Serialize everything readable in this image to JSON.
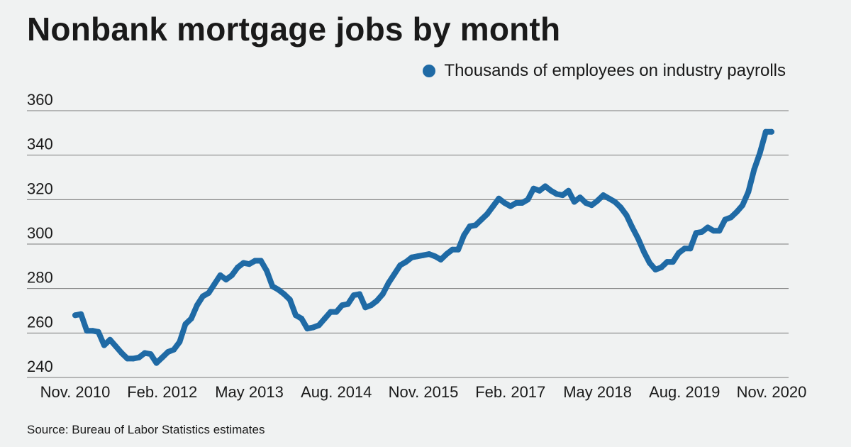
{
  "title": "Nonbank mortgage jobs by month",
  "source": "Source: Bureau of Labor Statistics estimates",
  "colors": {
    "series": "#1f6aa5",
    "grid": "#7a7a7a",
    "background": "#f0f2f2"
  },
  "chart_data": {
    "type": "line",
    "title": "Nonbank mortgage jobs by month",
    "xlabel": "",
    "ylabel": "",
    "ylim": [
      240,
      360
    ],
    "yticks": [
      240,
      260,
      280,
      300,
      320,
      340,
      360
    ],
    "xtick_labels": [
      "Nov. 2010",
      "Feb. 2012",
      "May 2013",
      "Aug. 2014",
      "Nov. 2015",
      "Feb. 2017",
      "May 2018",
      "Aug. 2019",
      "Nov. 2020"
    ],
    "grid": true,
    "legend_position": "top-right",
    "series": [
      {
        "name": "Thousands of employees on industry payrolls",
        "start": "Nov. 2010",
        "frequency": "monthly",
        "values": [
          268,
          268.5,
          261,
          261,
          260.5,
          254.5,
          257,
          254,
          251,
          248.5,
          248.5,
          249,
          251,
          250.5,
          246.5,
          249,
          251.5,
          252.5,
          256,
          264,
          266.5,
          272.5,
          276.5,
          278,
          282,
          286,
          284,
          286,
          289.5,
          291.5,
          291,
          292.5,
          292.5,
          288,
          281,
          279.5,
          277.5,
          275,
          268,
          266.5,
          262,
          262.5,
          263.5,
          266.5,
          269.5,
          269.5,
          272.5,
          273,
          277,
          277.5,
          271.5,
          272.5,
          274.5,
          277.5,
          282.5,
          286.5,
          290.5,
          292,
          294,
          294.5,
          295,
          295.5,
          294.5,
          293,
          295.5,
          297.5,
          297.5,
          304,
          308,
          308.5,
          311,
          313.5,
          317,
          320.5,
          318.5,
          317,
          318.5,
          318.5,
          320,
          325,
          324,
          326,
          324,
          322.5,
          322,
          324,
          319,
          321,
          318.5,
          317.5,
          319.5,
          322,
          320.5,
          319,
          316.5,
          313,
          307.5,
          302.5,
          296.5,
          291.5,
          288.5,
          289.5,
          292,
          292,
          296,
          298,
          298,
          305,
          305.5,
          307.5,
          306,
          306,
          311,
          312,
          314.5,
          317.5,
          323.5,
          333.5,
          341,
          350.5,
          350.5
        ]
      }
    ]
  }
}
